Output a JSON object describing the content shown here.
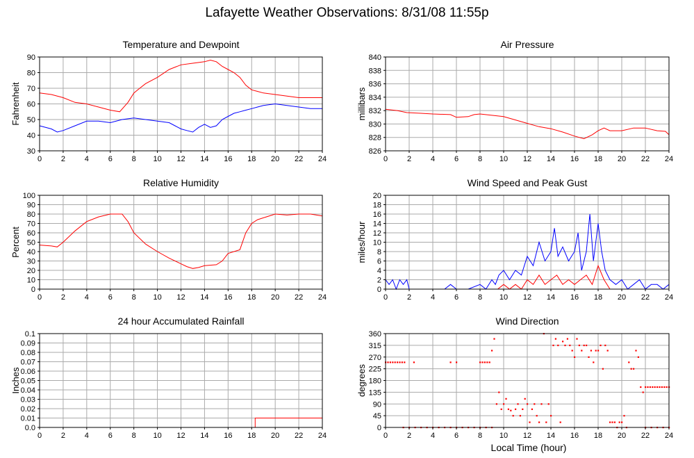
{
  "page_title": "Lafayette Weather Observations: 8/31/08 11:55p",
  "x_axis_caption": "Local Time (hour)",
  "colors": {
    "red": "#ff0000",
    "blue": "#0000ff",
    "grid": "#aaaaaa",
    "frame": "#000000"
  },
  "chart_data": [
    {
      "type": "line",
      "title": "Temperature and Dewpoint",
      "ylabel": "Fahrenheit",
      "xlabel": "",
      "xlim": [
        0,
        24
      ],
      "ylim": [
        30,
        90
      ],
      "xticks": [
        0,
        2,
        4,
        6,
        8,
        10,
        12,
        14,
        16,
        18,
        20,
        22,
        24
      ],
      "xtick_labels": [
        "0",
        "2",
        "4",
        "6",
        "8",
        "10",
        "12",
        "14",
        "16",
        "18",
        "20",
        "22",
        "24"
      ],
      "yticks": [
        30,
        40,
        50,
        60,
        70,
        80,
        90
      ],
      "ytick_labels": [
        "30",
        "40",
        "50",
        "60",
        "70",
        "80",
        "90"
      ],
      "grid": true,
      "series": [
        {
          "color": "#ff0000",
          "x": [
            0,
            1,
            2,
            3,
            4,
            5,
            6,
            6.8,
            7.5,
            8,
            8.5,
            9,
            10,
            11,
            12,
            13,
            14,
            14.5,
            15,
            15.5,
            16,
            16.5,
            17,
            17.5,
            18,
            18.5,
            19,
            20,
            21,
            22,
            23,
            24
          ],
          "y": [
            67,
            66,
            64,
            61,
            60,
            58,
            56,
            55,
            61,
            67,
            70,
            73,
            77,
            82,
            85,
            86,
            87,
            88,
            87,
            84,
            82,
            80,
            77,
            72,
            69,
            68,
            67,
            66,
            65,
            64,
            64,
            64
          ]
        },
        {
          "color": "#0000ff",
          "x": [
            0,
            1,
            1.5,
            2,
            3,
            4,
            5,
            6,
            7,
            8,
            9,
            10,
            11,
            11.5,
            12,
            12.5,
            13,
            13.5,
            14,
            14.5,
            15,
            15.5,
            16,
            16.5,
            17,
            17.5,
            18,
            18.5,
            19,
            20,
            21,
            22,
            23,
            24
          ],
          "y": [
            46,
            44,
            42,
            43,
            46,
            49,
            49,
            48,
            50,
            51,
            50,
            49,
            48,
            46,
            44,
            43,
            42,
            45,
            47,
            45,
            46,
            50,
            52,
            54,
            55,
            56,
            57,
            58,
            59,
            60,
            59,
            58,
            57,
            57
          ]
        }
      ]
    },
    {
      "type": "line",
      "title": "Air Pressure",
      "ylabel": "millibars",
      "xlabel": "",
      "xlim": [
        0,
        24
      ],
      "ylim": [
        826,
        840
      ],
      "xticks": [
        0,
        2,
        4,
        6,
        8,
        10,
        12,
        14,
        16,
        18,
        20,
        22,
        24
      ],
      "xtick_labels": [
        "0",
        "2",
        "4",
        "6",
        "8",
        "10",
        "12",
        "14",
        "16",
        "18",
        "20",
        "22",
        "24"
      ],
      "yticks": [
        826,
        828,
        830,
        832,
        834,
        836,
        838,
        840
      ],
      "ytick_labels": [
        "826",
        "828",
        "830",
        "832",
        "834",
        "836",
        "838",
        "840"
      ],
      "grid": true,
      "series": [
        {
          "color": "#ff0000",
          "x": [
            0,
            1,
            1.8,
            3,
            4,
            5.5,
            6,
            7,
            7.5,
            8,
            9,
            10,
            11,
            12,
            13,
            14,
            15,
            16,
            16.8,
            17.5,
            18,
            18.5,
            19,
            20,
            21,
            22,
            23,
            23.7,
            24
          ],
          "y": [
            832.2,
            832.0,
            831.7,
            831.6,
            831.5,
            831.4,
            831.0,
            831.1,
            831.4,
            831.5,
            831.3,
            831.1,
            830.6,
            830.1,
            829.6,
            829.3,
            828.8,
            828.2,
            827.8,
            828.4,
            829.0,
            829.4,
            829.0,
            829.0,
            829.4,
            829.4,
            829.0,
            828.9,
            828.4
          ]
        }
      ]
    },
    {
      "type": "line",
      "title": "Relative Humidity",
      "ylabel": "Percent",
      "xlabel": "",
      "xlim": [
        0,
        24
      ],
      "ylim": [
        0,
        100
      ],
      "xticks": [
        0,
        2,
        4,
        6,
        8,
        10,
        12,
        14,
        16,
        18,
        20,
        22,
        24
      ],
      "xtick_labels": [
        "0",
        "2",
        "4",
        "6",
        "8",
        "10",
        "12",
        "14",
        "16",
        "18",
        "20",
        "22",
        "24"
      ],
      "yticks": [
        0,
        10,
        20,
        30,
        40,
        50,
        60,
        70,
        80,
        90,
        100
      ],
      "ytick_labels": [
        "0",
        "10",
        "20",
        "30",
        "40",
        "50",
        "60",
        "70",
        "80",
        "90",
        "100"
      ],
      "grid": true,
      "series": [
        {
          "color": "#ff0000",
          "x": [
            0,
            1,
            1.5,
            2,
            3,
            4,
            5,
            6,
            7,
            7.5,
            8,
            9,
            10,
            11,
            12,
            12.5,
            13,
            13.5,
            14,
            15,
            15.5,
            16,
            16.5,
            17,
            17.5,
            18,
            18.5,
            19,
            20,
            21,
            22,
            23,
            24
          ],
          "y": [
            47,
            46,
            45,
            50,
            62,
            72,
            77,
            80,
            80,
            72,
            60,
            48,
            40,
            33,
            27,
            24,
            22,
            23,
            25,
            26,
            30,
            38,
            40,
            42,
            60,
            70,
            74,
            76,
            80,
            79,
            80,
            80,
            78
          ]
        }
      ]
    },
    {
      "type": "line",
      "title": "Wind Speed and Peak Gust",
      "ylabel": "miles/hour",
      "xlabel": "",
      "xlim": [
        0,
        24
      ],
      "ylim": [
        0,
        20
      ],
      "xticks": [
        0,
        2,
        4,
        6,
        8,
        10,
        12,
        14,
        16,
        18,
        20,
        22,
        24
      ],
      "xtick_labels": [
        "0",
        "2",
        "4",
        "6",
        "8",
        "10",
        "12",
        "14",
        "16",
        "18",
        "20",
        "22",
        "24"
      ],
      "yticks": [
        0,
        2,
        4,
        6,
        8,
        10,
        12,
        14,
        16,
        18,
        20
      ],
      "ytick_labels": [
        "0",
        "2",
        "4",
        "6",
        "8",
        "10",
        "12",
        "14",
        "16",
        "18",
        "20"
      ],
      "grid": true,
      "series": [
        {
          "color": "#0000ff",
          "x": [
            0,
            0.3,
            0.6,
            0.9,
            1.2,
            1.5,
            1.8,
            2.0,
            2.5,
            3,
            4,
            5,
            5.5,
            6,
            7,
            8,
            8.5,
            9,
            9.3,
            9.6,
            10,
            10.5,
            11,
            11.5,
            12,
            12.5,
            13,
            13.5,
            14,
            14.3,
            14.6,
            15,
            15.5,
            16,
            16.3,
            16.6,
            17,
            17.3,
            17.6,
            18,
            18.3,
            18.6,
            19,
            19.5,
            20,
            20.5,
            21,
            21.5,
            22,
            22.5,
            23,
            23.5,
            24
          ],
          "y": [
            2,
            1,
            2,
            0,
            2,
            1,
            2,
            0,
            0,
            0,
            0,
            0,
            1,
            0,
            0,
            1,
            0,
            2,
            1,
            3,
            4,
            2,
            4,
            3,
            7,
            5,
            10,
            6,
            8,
            13,
            7,
            9,
            6,
            8,
            12,
            4,
            8,
            16,
            6,
            14,
            8,
            4,
            2,
            1,
            2,
            0,
            1,
            2,
            0,
            1,
            1,
            0,
            1
          ]
        },
        {
          "color": "#ff0000",
          "x": [
            0,
            9.5,
            10,
            10.5,
            11,
            11.5,
            12,
            12.5,
            13,
            13.5,
            14,
            14.5,
            15,
            15.5,
            16,
            16.5,
            17,
            17.5,
            18,
            18.5,
            19,
            24
          ],
          "y": [
            0,
            0,
            1,
            0,
            1,
            0,
            2,
            1,
            3,
            1,
            2,
            3,
            1,
            2,
            1,
            2,
            3,
            1,
            5,
            2,
            0,
            0
          ]
        }
      ]
    },
    {
      "type": "line",
      "title": "24 hour Accumulated Rainfall",
      "ylabel": "Inches",
      "xlabel": "",
      "xlim": [
        0,
        24
      ],
      "ylim": [
        0,
        0.1
      ],
      "xticks": [
        0,
        2,
        4,
        6,
        8,
        10,
        12,
        14,
        16,
        18,
        20,
        22,
        24
      ],
      "xtick_labels": [
        "0",
        "2",
        "4",
        "6",
        "8",
        "10",
        "12",
        "14",
        "16",
        "18",
        "20",
        "22",
        "24"
      ],
      "yticks": [
        0,
        0.01,
        0.02,
        0.03,
        0.04,
        0.05,
        0.06,
        0.07,
        0.08,
        0.09,
        0.1
      ],
      "ytick_labels": [
        "0.0",
        "0.01",
        "0.02",
        "0.03",
        "0.04",
        "0.05",
        "0.06",
        "0.07",
        "0.08",
        "0.09",
        "0.1"
      ],
      "grid": true,
      "series": [
        {
          "color": "#ff0000",
          "x": [
            0,
            18.3,
            18.3,
            24
          ],
          "y": [
            0,
            0,
            0.01,
            0.01
          ]
        }
      ]
    },
    {
      "type": "scatter",
      "title": "Wind Direction",
      "ylabel": "degrees",
      "xlabel": "Local Time (hour)",
      "xlim": [
        0,
        24
      ],
      "ylim": [
        0,
        360
      ],
      "xticks": [
        0,
        2,
        4,
        6,
        8,
        10,
        12,
        14,
        16,
        18,
        20,
        22,
        24
      ],
      "xtick_labels": [
        "0",
        "2",
        "4",
        "6",
        "8",
        "10",
        "12",
        "14",
        "16",
        "18",
        "20",
        "22",
        "24"
      ],
      "yticks": [
        0,
        45,
        90,
        135,
        180,
        225,
        270,
        315,
        360
      ],
      "ytick_labels": [
        "0",
        "45",
        "90",
        "135",
        "180",
        "225",
        "270",
        "315",
        "360"
      ],
      "grid": true,
      "series": [
        {
          "color": "#ff0000",
          "x": [
            0,
            0.2,
            0.4,
            0.6,
            0.8,
            1.0,
            1.2,
            1.4,
            1.6,
            2.4,
            5.5,
            6.0,
            8.0,
            8.2,
            8.4,
            8.6,
            8.8,
            9.0,
            9.2,
            9.4,
            9.6,
            9.8,
            10.0,
            10.2,
            10.4,
            10.6,
            10.8,
            11.0,
            11.2,
            11.4,
            11.6,
            11.8,
            12.0,
            12.2,
            12.4,
            12.6,
            12.8,
            13.0,
            13.2,
            13.4,
            13.6,
            13.8,
            14.0,
            14.2,
            14.4,
            14.6,
            14.8,
            15.0,
            15.2,
            15.4,
            15.6,
            15.8,
            16.0,
            16.2,
            16.4,
            16.6,
            16.8,
            17.0,
            17.2,
            17.4,
            17.6,
            17.8,
            18.0,
            18.2,
            18.4,
            18.6,
            18.8,
            19.0,
            19.2,
            19.4,
            19.6,
            19.8,
            20.0,
            20.2,
            20.4,
            20.6,
            20.8,
            21.0,
            21.2,
            21.4,
            21.6,
            21.8,
            22.0,
            22.2,
            22.4,
            22.6,
            22.8,
            23.0,
            23.2,
            23.4,
            23.6,
            23.8,
            24.0,
            1.5,
            2.0,
            2.5,
            3.0,
            3.5,
            4.0,
            4.5,
            5.0,
            5.5,
            6.0,
            6.5,
            7.0,
            7.5,
            8.0,
            8.5,
            9.0,
            22.0,
            22.5,
            23.0,
            23.5,
            24.0
          ],
          "y": [
            250,
            250,
            250,
            250,
            250,
            250,
            250,
            250,
            250,
            250,
            250,
            250,
            250,
            250,
            250,
            250,
            250,
            295,
            340,
            90,
            135,
            70,
            90,
            110,
            70,
            65,
            45,
            70,
            90,
            45,
            70,
            110,
            90,
            20,
            70,
            90,
            45,
            20,
            90,
            360,
            20,
            90,
            45,
            315,
            340,
            315,
            20,
            330,
            315,
            340,
            315,
            295,
            270,
            340,
            315,
            295,
            315,
            315,
            270,
            295,
            250,
            295,
            295,
            315,
            225,
            315,
            295,
            20,
            20,
            20,
            0,
            20,
            20,
            45,
            0,
            250,
            225,
            225,
            295,
            270,
            155,
            135,
            155,
            155,
            155,
            155,
            155,
            155,
            155,
            155,
            155,
            155,
            155,
            0,
            0,
            0,
            0,
            0,
            0,
            0,
            0,
            0,
            0,
            0,
            0,
            0,
            0,
            0,
            0,
            0,
            0,
            0,
            0,
            0
          ]
        }
      ]
    }
  ]
}
